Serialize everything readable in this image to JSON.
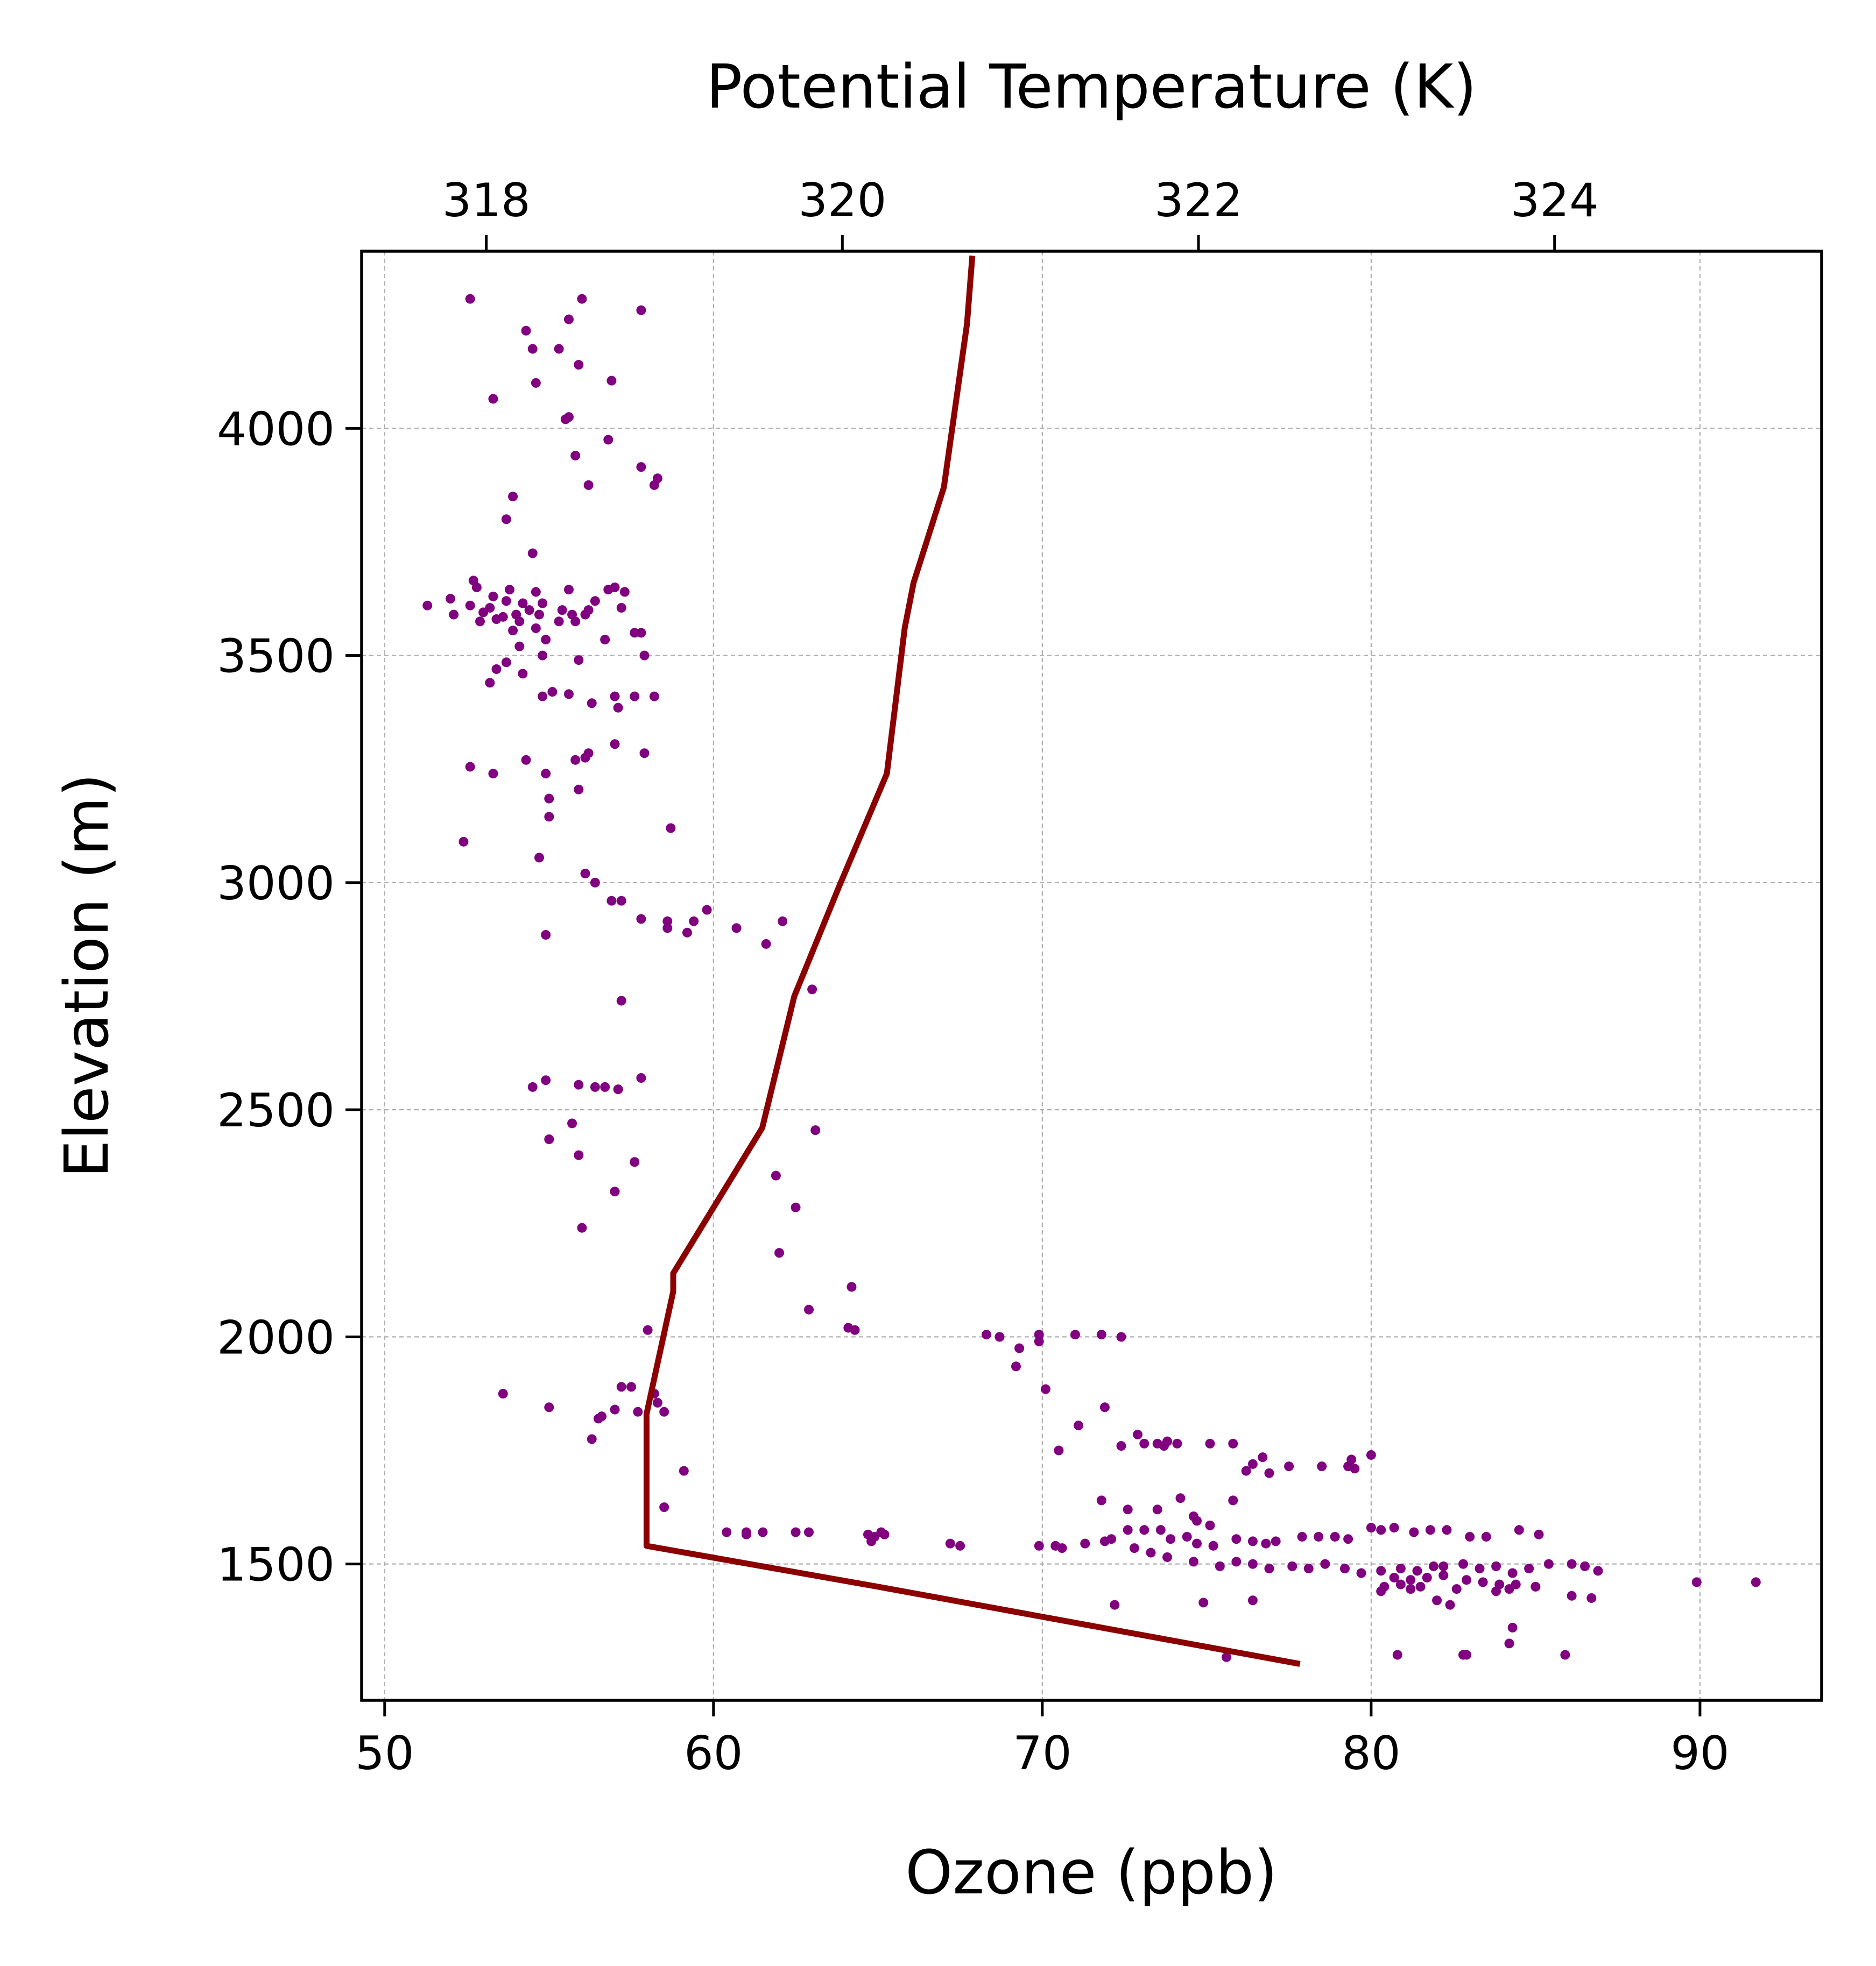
{
  "chart_data": {
    "type": "scatter",
    "title": "",
    "xlabel": "Ozone (ppb)",
    "ylabel": "Elevation (m)",
    "x2label": "Potential Temperature (K)",
    "xlim": [
      49.3,
      93.7
    ],
    "ylim": [
      1200,
      4390
    ],
    "x2lim": [
      317.3,
      325.5
    ],
    "xticks": [
      50,
      60,
      70,
      80,
      90
    ],
    "yticks": [
      1500,
      2000,
      2500,
      3000,
      3500,
      4000
    ],
    "x2ticks": [
      318,
      320,
      322,
      324
    ],
    "grid": true,
    "legend": "none",
    "colors": {
      "scatter": "#800080",
      "line": "#8b0000"
    },
    "series": [
      {
        "type": "scatter",
        "axis": "ozone",
        "points": [
          [
            52.6,
            4285
          ],
          [
            56.0,
            4285
          ],
          [
            57.8,
            4260
          ],
          [
            55.6,
            4240
          ],
          [
            54.3,
            4215
          ],
          [
            54.5,
            4175
          ],
          [
            55.3,
            4175
          ],
          [
            55.9,
            4140
          ],
          [
            54.6,
            4100
          ],
          [
            56.9,
            4105
          ],
          [
            53.3,
            4065
          ],
          [
            55.6,
            4025
          ],
          [
            55.5,
            4020
          ],
          [
            56.8,
            3975
          ],
          [
            55.8,
            3940
          ],
          [
            57.8,
            3915
          ],
          [
            58.3,
            3890
          ],
          [
            58.2,
            3875
          ],
          [
            56.2,
            3875
          ],
          [
            53.9,
            3850
          ],
          [
            53.7,
            3800
          ],
          [
            54.5,
            3725
          ],
          [
            52.7,
            3665
          ],
          [
            52.8,
            3650
          ],
          [
            53.8,
            3645
          ],
          [
            54.6,
            3640
          ],
          [
            55.6,
            3645
          ],
          [
            56.8,
            3645
          ],
          [
            57.0,
            3650
          ],
          [
            52.0,
            3625
          ],
          [
            53.3,
            3630
          ],
          [
            53.7,
            3620
          ],
          [
            54.2,
            3615
          ],
          [
            54.8,
            3615
          ],
          [
            56.4,
            3620
          ],
          [
            57.3,
            3640
          ],
          [
            51.3,
            3610
          ],
          [
            52.6,
            3610
          ],
          [
            53.2,
            3605
          ],
          [
            54.4,
            3600
          ],
          [
            55.4,
            3600
          ],
          [
            56.2,
            3600
          ],
          [
            57.2,
            3605
          ],
          [
            52.1,
            3590
          ],
          [
            53.0,
            3595
          ],
          [
            53.6,
            3585
          ],
          [
            54.0,
            3590
          ],
          [
            54.7,
            3590
          ],
          [
            55.7,
            3590
          ],
          [
            56.1,
            3590
          ],
          [
            52.9,
            3575
          ],
          [
            53.4,
            3580
          ],
          [
            54.1,
            3575
          ],
          [
            55.3,
            3575
          ],
          [
            55.8,
            3575
          ],
          [
            54.6,
            3560
          ],
          [
            53.9,
            3555
          ],
          [
            57.6,
            3550
          ],
          [
            57.8,
            3550
          ],
          [
            54.9,
            3535
          ],
          [
            56.7,
            3535
          ],
          [
            54.1,
            3520
          ],
          [
            57.9,
            3500
          ],
          [
            54.8,
            3500
          ],
          [
            55.9,
            3490
          ],
          [
            53.7,
            3485
          ],
          [
            53.4,
            3470
          ],
          [
            54.2,
            3460
          ],
          [
            53.2,
            3440
          ],
          [
            55.1,
            3420
          ],
          [
            55.6,
            3415
          ],
          [
            54.8,
            3410
          ],
          [
            57.0,
            3410
          ],
          [
            57.6,
            3410
          ],
          [
            58.2,
            3410
          ],
          [
            56.3,
            3395
          ],
          [
            57.1,
            3385
          ],
          [
            57.0,
            3305
          ],
          [
            56.2,
            3285
          ],
          [
            57.9,
            3285
          ],
          [
            55.8,
            3270
          ],
          [
            54.3,
            3270
          ],
          [
            56.1,
            3275
          ],
          [
            52.6,
            3255
          ],
          [
            53.3,
            3240
          ],
          [
            54.9,
            3240
          ],
          [
            55.9,
            3205
          ],
          [
            55.0,
            3185
          ],
          [
            55.0,
            3145
          ],
          [
            58.7,
            3120
          ],
          [
            52.4,
            3090
          ],
          [
            54.7,
            3055
          ],
          [
            56.1,
            3020
          ],
          [
            56.4,
            3000
          ],
          [
            57.2,
            2960
          ],
          [
            56.9,
            2960
          ],
          [
            59.8,
            2940
          ],
          [
            58.6,
            2915
          ],
          [
            59.4,
            2915
          ],
          [
            57.8,
            2920
          ],
          [
            62.1,
            2915
          ],
          [
            58.6,
            2900
          ],
          [
            59.2,
            2890
          ],
          [
            60.7,
            2900
          ],
          [
            54.9,
            2885
          ],
          [
            61.6,
            2865
          ],
          [
            63.0,
            2765
          ],
          [
            57.2,
            2740
          ],
          [
            57.8,
            2570
          ],
          [
            54.9,
            2565
          ],
          [
            55.9,
            2555
          ],
          [
            56.4,
            2550
          ],
          [
            57.1,
            2545
          ],
          [
            54.5,
            2550
          ],
          [
            56.7,
            2550
          ],
          [
            55.7,
            2470
          ],
          [
            63.1,
            2455
          ],
          [
            55.0,
            2435
          ],
          [
            55.9,
            2400
          ],
          [
            57.6,
            2385
          ],
          [
            61.9,
            2355
          ],
          [
            57.0,
            2320
          ],
          [
            62.5,
            2285
          ],
          [
            56.0,
            2240
          ],
          [
            62.0,
            2185
          ],
          [
            64.2,
            2110
          ],
          [
            62.9,
            2060
          ],
          [
            64.1,
            2020
          ],
          [
            64.3,
            2015
          ],
          [
            58.0,
            2015
          ],
          [
            68.3,
            2005
          ],
          [
            68.7,
            2000
          ],
          [
            69.9,
            2005
          ],
          [
            71.0,
            2005
          ],
          [
            71.8,
            2005
          ],
          [
            72.4,
            2000
          ],
          [
            69.9,
            1990
          ],
          [
            69.3,
            1975
          ],
          [
            69.2,
            1935
          ],
          [
            70.1,
            1885
          ],
          [
            53.6,
            1875
          ],
          [
            57.2,
            1890
          ],
          [
            57.5,
            1890
          ],
          [
            58.2,
            1875
          ],
          [
            58.3,
            1855
          ],
          [
            58.5,
            1835
          ],
          [
            57.0,
            1840
          ],
          [
            57.7,
            1835
          ],
          [
            55.0,
            1845
          ],
          [
            56.6,
            1825
          ],
          [
            56.5,
            1820
          ],
          [
            71.9,
            1845
          ],
          [
            71.1,
            1805
          ],
          [
            56.3,
            1775
          ],
          [
            72.9,
            1785
          ],
          [
            73.1,
            1765
          ],
          [
            73.5,
            1765
          ],
          [
            73.8,
            1770
          ],
          [
            74.1,
            1765
          ],
          [
            72.4,
            1760
          ],
          [
            73.7,
            1760
          ],
          [
            75.1,
            1765
          ],
          [
            75.8,
            1765
          ],
          [
            70.5,
            1750
          ],
          [
            76.7,
            1735
          ],
          [
            80.0,
            1740
          ],
          [
            79.4,
            1730
          ],
          [
            79.3,
            1715
          ],
          [
            76.4,
            1720
          ],
          [
            77.5,
            1715
          ],
          [
            78.5,
            1715
          ],
          [
            76.9,
            1700
          ],
          [
            76.2,
            1705
          ],
          [
            79.5,
            1710
          ],
          [
            75.8,
            1640
          ],
          [
            74.2,
            1645
          ],
          [
            71.8,
            1640
          ],
          [
            72.6,
            1620
          ],
          [
            73.5,
            1620
          ],
          [
            74.6,
            1605
          ],
          [
            74.7,
            1595
          ],
          [
            75.1,
            1585
          ],
          [
            58.5,
            1625
          ],
          [
            59.1,
            1705
          ],
          [
            60.4,
            1570
          ],
          [
            61.0,
            1570
          ],
          [
            61.5,
            1570
          ],
          [
            61.0,
            1565
          ],
          [
            62.5,
            1570
          ],
          [
            62.9,
            1570
          ],
          [
            65.1,
            1570
          ],
          [
            64.9,
            1560
          ],
          [
            64.8,
            1550
          ],
          [
            67.2,
            1545
          ],
          [
            67.5,
            1540
          ],
          [
            69.9,
            1540
          ],
          [
            70.4,
            1540
          ],
          [
            70.6,
            1535
          ],
          [
            71.3,
            1545
          ],
          [
            71.9,
            1550
          ],
          [
            72.1,
            1555
          ],
          [
            72.6,
            1575
          ],
          [
            73.1,
            1575
          ],
          [
            73.6,
            1575
          ],
          [
            73.9,
            1555
          ],
          [
            74.4,
            1560
          ],
          [
            74.7,
            1545
          ],
          [
            75.2,
            1540
          ],
          [
            75.9,
            1555
          ],
          [
            76.4,
            1550
          ],
          [
            76.8,
            1545
          ],
          [
            77.1,
            1550
          ],
          [
            77.9,
            1560
          ],
          [
            78.4,
            1560
          ],
          [
            78.9,
            1560
          ],
          [
            79.3,
            1555
          ],
          [
            80.0,
            1580
          ],
          [
            80.3,
            1575
          ],
          [
            80.7,
            1580
          ],
          [
            81.3,
            1570
          ],
          [
            81.8,
            1575
          ],
          [
            82.3,
            1575
          ],
          [
            83.0,
            1560
          ],
          [
            83.5,
            1560
          ],
          [
            84.5,
            1575
          ],
          [
            85.1,
            1565
          ],
          [
            72.8,
            1535
          ],
          [
            73.3,
            1525
          ],
          [
            73.8,
            1515
          ],
          [
            74.6,
            1505
          ],
          [
            75.4,
            1495
          ],
          [
            75.9,
            1505
          ],
          [
            76.4,
            1500
          ],
          [
            76.9,
            1490
          ],
          [
            77.6,
            1495
          ],
          [
            78.1,
            1490
          ],
          [
            78.6,
            1500
          ],
          [
            79.2,
            1490
          ],
          [
            79.7,
            1480
          ],
          [
            80.3,
            1485
          ],
          [
            80.9,
            1490
          ],
          [
            81.4,
            1485
          ],
          [
            81.9,
            1495
          ],
          [
            82.2,
            1495
          ],
          [
            82.8,
            1500
          ],
          [
            83.3,
            1490
          ],
          [
            83.8,
            1495
          ],
          [
            84.3,
            1480
          ],
          [
            84.8,
            1490
          ],
          [
            85.4,
            1500
          ],
          [
            86.1,
            1500
          ],
          [
            86.5,
            1495
          ],
          [
            86.9,
            1485
          ],
          [
            80.7,
            1470
          ],
          [
            81.2,
            1465
          ],
          [
            81.7,
            1470
          ],
          [
            82.2,
            1475
          ],
          [
            82.9,
            1465
          ],
          [
            83.4,
            1460
          ],
          [
            83.9,
            1455
          ],
          [
            84.4,
            1455
          ],
          [
            85.0,
            1450
          ],
          [
            80.4,
            1450
          ],
          [
            80.9,
            1455
          ],
          [
            81.5,
            1450
          ],
          [
            82.6,
            1445
          ],
          [
            83.8,
            1440
          ],
          [
            84.2,
            1445
          ],
          [
            86.1,
            1430
          ],
          [
            86.7,
            1425
          ],
          [
            80.3,
            1440
          ],
          [
            81.2,
            1445
          ],
          [
            82.0,
            1420
          ],
          [
            82.4,
            1410
          ],
          [
            74.9,
            1415
          ],
          [
            76.4,
            1420
          ],
          [
            72.2,
            1410
          ],
          [
            84.3,
            1360
          ],
          [
            84.2,
            1325
          ],
          [
            80.8,
            1300
          ],
          [
            82.8,
            1300
          ],
          [
            82.9,
            1300
          ],
          [
            85.9,
            1300
          ],
          [
            75.6,
            1295
          ],
          [
            89.9,
            1460
          ],
          [
            91.7,
            1460
          ],
          [
            64.7,
            1565
          ],
          [
            65.2,
            1565
          ]
        ]
      },
      {
        "type": "line",
        "axis": "potential_temperature",
        "points": [
          [
            322.57,
            1280
          ],
          [
            320.2,
            1450
          ],
          [
            318.9,
            1540
          ],
          [
            318.9,
            1830
          ],
          [
            318.95,
            1920
          ],
          [
            319.05,
            2100
          ],
          [
            319.05,
            2140
          ],
          [
            319.55,
            2460
          ],
          [
            319.73,
            2750
          ],
          [
            319.98,
            2990
          ],
          [
            320.25,
            3240
          ],
          [
            320.35,
            3560
          ],
          [
            320.4,
            3660
          ],
          [
            320.57,
            3870
          ],
          [
            320.7,
            4230
          ],
          [
            320.73,
            4380
          ]
        ]
      }
    ]
  }
}
